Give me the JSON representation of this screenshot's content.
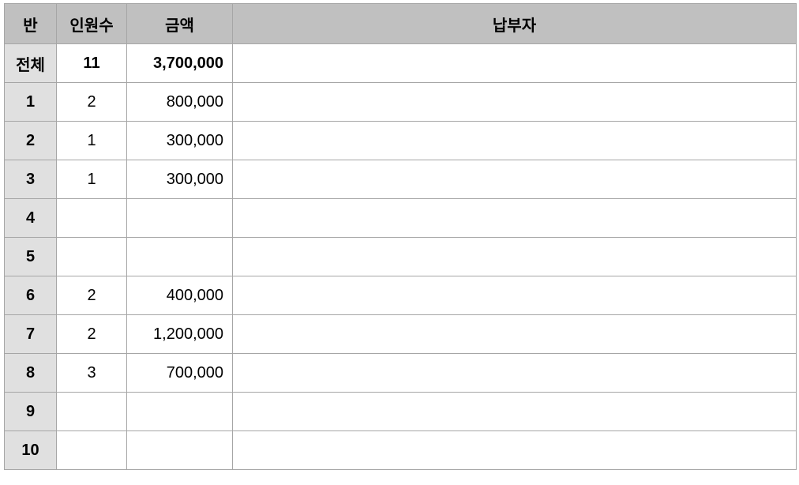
{
  "headers": {
    "ban": "반",
    "count": "인원수",
    "amount": "금액",
    "donors": "납부자"
  },
  "rows": [
    {
      "ban": "전체",
      "count": "11",
      "amount": "3,700,000",
      "donors": ""
    },
    {
      "ban": "1",
      "count": "2",
      "amount": "800,000",
      "donors": ""
    },
    {
      "ban": "2",
      "count": "1",
      "amount": "300,000",
      "donors": ""
    },
    {
      "ban": "3",
      "count": "1",
      "amount": "300,000",
      "donors": ""
    },
    {
      "ban": "4",
      "count": "",
      "amount": "",
      "donors": ""
    },
    {
      "ban": "5",
      "count": "",
      "amount": "",
      "donors": ""
    },
    {
      "ban": "6",
      "count": "2",
      "amount": "400,000",
      "donors": ""
    },
    {
      "ban": "7",
      "count": "2",
      "amount": "1,200,000",
      "donors": ""
    },
    {
      "ban": "8",
      "count": "3",
      "amount": "700,000",
      "donors": ""
    },
    {
      "ban": "9",
      "count": "",
      "amount": "",
      "donors": ""
    },
    {
      "ban": "10",
      "count": "",
      "amount": "",
      "donors": ""
    }
  ]
}
